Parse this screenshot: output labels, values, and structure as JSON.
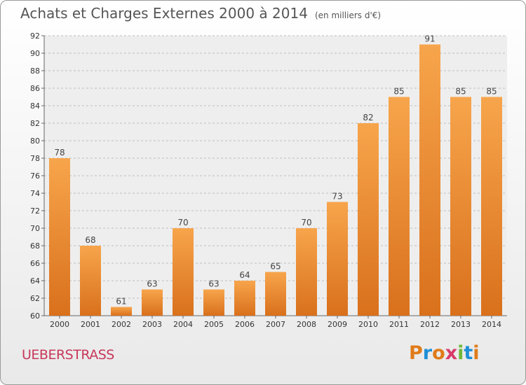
{
  "chart_data": {
    "type": "bar",
    "title": "Achats et Charges Externes 2000 à 2014",
    "subtitle": "(en milliers d'€)",
    "categories": [
      "2000",
      "2001",
      "2002",
      "2003",
      "2004",
      "2005",
      "2006",
      "2007",
      "2008",
      "2009",
      "2010",
      "2011",
      "2012",
      "2013",
      "2014"
    ],
    "values": [
      78,
      68,
      61,
      63,
      70,
      63,
      64,
      65,
      70,
      73,
      82,
      85,
      91,
      85,
      85
    ],
    "data_labels": [
      "78",
      "68",
      "61",
      "63",
      "70",
      "63",
      "64",
      "65",
      "70",
      "73",
      "82",
      "85",
      "91",
      "85",
      "85"
    ],
    "ylim": [
      60,
      92
    ],
    "yticks": [
      "60",
      "62",
      "64",
      "66",
      "68",
      "70",
      "72",
      "74",
      "76",
      "78",
      "80",
      "82",
      "84",
      "86",
      "88",
      "90",
      "92"
    ],
    "grid": "horizontal dashed",
    "bar_color_top": "#f7a54c",
    "bar_color_bottom": "#d9701c"
  },
  "footer": {
    "commune": "UEBERSTRASS",
    "logo_letters": [
      "P",
      "r",
      "o",
      "x",
      "i",
      "t",
      "i"
    ]
  }
}
